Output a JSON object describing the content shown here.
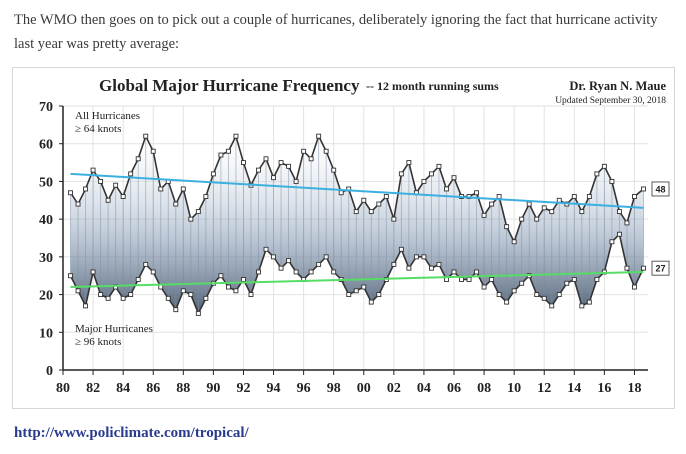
{
  "article": {
    "intro_text": "The WMO then goes on to pick out a couple of hurricanes, deliberately ignoring the fact that hurricane activity last year was pretty average:",
    "link_text": "http://www.policlimate.com/tropical/"
  },
  "chart_data": {
    "type": "line",
    "title": "Global Major Hurricane Frequency",
    "subtitle": "-- 12 month running sums",
    "author": "Dr. Ryan N. Maue",
    "updated": "Updated September 30, 2018",
    "xlim": [
      1980,
      2018.9
    ],
    "ylim": [
      0,
      70
    ],
    "x_ticks": [
      "80",
      "82",
      "84",
      "86",
      "88",
      "90",
      "92",
      "94",
      "96",
      "98",
      "00",
      "02",
      "04",
      "06",
      "08",
      "10",
      "12",
      "14",
      "16",
      "18"
    ],
    "y_ticks": [
      "0",
      "10",
      "20",
      "30",
      "40",
      "50",
      "60",
      "70"
    ],
    "grid": true,
    "colors": {
      "series": "#333333",
      "fill": "#6b7f97",
      "trend_all": "#3ab0e0",
      "trend_major": "#55dd66"
    },
    "series": [
      {
        "name": "All Hurricanes",
        "annotation": [
          "All Hurricanes",
          "≥ 64 knots"
        ],
        "end_label": "48",
        "x": [
          1980.5,
          1981,
          1981.5,
          1982,
          1982.5,
          1983,
          1983.5,
          1984,
          1984.5,
          1985,
          1985.5,
          1986,
          1986.5,
          1987,
          1987.5,
          1988,
          1988.5,
          1989,
          1989.5,
          1990,
          1990.5,
          1991,
          1991.5,
          1992,
          1992.5,
          1993,
          1993.5,
          1994,
          1994.5,
          1995,
          1995.5,
          1996,
          1996.5,
          1997,
          1997.5,
          1998,
          1998.5,
          1999,
          1999.5,
          2000,
          2000.5,
          2001,
          2001.5,
          2002,
          2002.5,
          2003,
          2003.5,
          2004,
          2004.5,
          2005,
          2005.5,
          2006,
          2006.5,
          2007,
          2007.5,
          2008,
          2008.5,
          2009,
          2009.5,
          2010,
          2010.5,
          2011,
          2011.5,
          2012,
          2012.5,
          2013,
          2013.5,
          2014,
          2014.5,
          2015,
          2015.5,
          2016,
          2016.5,
          2017,
          2017.5,
          2018,
          2018.6
        ],
        "values": [
          47,
          44,
          48,
          53,
          50,
          45,
          49,
          46,
          52,
          56,
          62,
          58,
          48,
          50,
          44,
          48,
          40,
          42,
          46,
          52,
          57,
          58,
          62,
          55,
          49,
          53,
          56,
          51,
          55,
          54,
          50,
          58,
          56,
          62,
          58,
          53,
          47,
          48,
          42,
          45,
          42,
          44,
          46,
          40,
          52,
          55,
          47,
          50,
          52,
          54,
          48,
          51,
          46,
          46,
          47,
          41,
          44,
          46,
          38,
          34,
          40,
          44,
          40,
          43,
          42,
          45,
          44,
          46,
          42,
          46,
          52,
          54,
          50,
          42,
          39,
          46,
          48
        ],
        "trend": [
          52,
          43
        ]
      },
      {
        "name": "Major Hurricanes",
        "annotation": [
          "Major Hurricanes",
          "≥ 96 knots"
        ],
        "end_label": "27",
        "x": [
          1980.5,
          1981,
          1981.5,
          1982,
          1982.5,
          1983,
          1983.5,
          1984,
          1984.5,
          1985,
          1985.5,
          1986,
          1986.5,
          1987,
          1987.5,
          1988,
          1988.5,
          1989,
          1989.5,
          1990,
          1990.5,
          1991,
          1991.5,
          1992,
          1992.5,
          1993,
          1993.5,
          1994,
          1994.5,
          1995,
          1995.5,
          1996,
          1996.5,
          1997,
          1997.5,
          1998,
          1998.5,
          1999,
          1999.5,
          2000,
          2000.5,
          2001,
          2001.5,
          2002,
          2002.5,
          2003,
          2003.5,
          2004,
          2004.5,
          2005,
          2005.5,
          2006,
          2006.5,
          2007,
          2007.5,
          2008,
          2008.5,
          2009,
          2009.5,
          2010,
          2010.5,
          2011,
          2011.5,
          2012,
          2012.5,
          2013,
          2013.5,
          2014,
          2014.5,
          2015,
          2015.5,
          2016,
          2016.5,
          2017,
          2017.5,
          2018,
          2018.6
        ],
        "values": [
          25,
          21,
          17,
          26,
          20,
          19,
          22,
          19,
          20,
          24,
          28,
          26,
          22,
          19,
          16,
          21,
          20,
          15,
          19,
          23,
          25,
          22,
          21,
          24,
          20,
          26,
          32,
          30,
          27,
          29,
          26,
          24,
          26,
          28,
          30,
          26,
          24,
          20,
          21,
          22,
          18,
          20,
          24,
          28,
          32,
          27,
          30,
          30,
          27,
          28,
          24,
          26,
          24,
          24,
          26,
          22,
          24,
          20,
          18,
          21,
          23,
          25,
          20,
          19,
          17,
          20,
          23,
          24,
          17,
          18,
          24,
          26,
          34,
          36,
          27,
          22,
          27
        ],
        "trend": [
          22,
          26
        ]
      }
    ]
  }
}
